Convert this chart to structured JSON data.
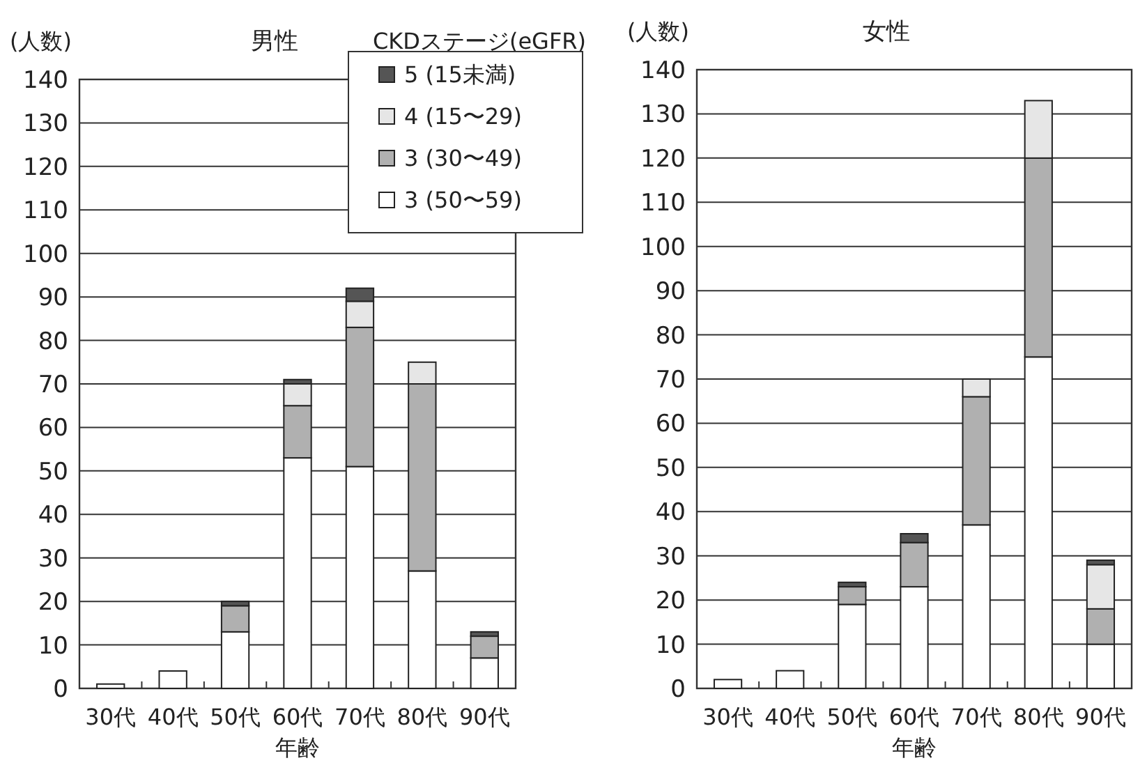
{
  "chart_data": [
    {
      "type": "bar",
      "stacked": true,
      "title": "男性",
      "legend_title": "CKDステージ(eGFR)",
      "xlabel": "年齢",
      "ylabel": "(人数)",
      "categories": [
        "30代",
        "40代",
        "50代",
        "60代",
        "70代",
        "80代",
        "90代"
      ],
      "ylim": [
        0,
        140
      ],
      "yticks": [
        0,
        10,
        20,
        30,
        40,
        50,
        60,
        70,
        80,
        90,
        100,
        110,
        120,
        130,
        140
      ],
      "grid": "y",
      "legend": "top right",
      "series": [
        {
          "name": "3 (50〜59)",
          "color": "#ffffff",
          "values": [
            1,
            4,
            13,
            53,
            51,
            27,
            7
          ]
        },
        {
          "name": "3 (30〜49)",
          "color": "#b0b0b0",
          "values": [
            0,
            0,
            6,
            12,
            32,
            43,
            5
          ]
        },
        {
          "name": "4 (15〜29)",
          "color": "#e6e6e6",
          "values": [
            0,
            0,
            0,
            5,
            6,
            5,
            0
          ]
        },
        {
          "name": "5 (15未満)",
          "color": "#555555",
          "values": [
            0,
            0,
            1,
            1,
            3,
            0,
            1
          ]
        }
      ]
    },
    {
      "type": "bar",
      "stacked": true,
      "title": "女性",
      "xlabel": "年齢",
      "ylabel": "(人数)",
      "categories": [
        "30代",
        "40代",
        "50代",
        "60代",
        "70代",
        "80代",
        "90代"
      ],
      "ylim": [
        0,
        140
      ],
      "yticks": [
        0,
        10,
        20,
        30,
        40,
        50,
        60,
        70,
        80,
        90,
        100,
        110,
        120,
        130,
        140
      ],
      "grid": "y",
      "series": [
        {
          "color": "#ffffff",
          "values": [
            2,
            4,
            19,
            23,
            37,
            75,
            10
          ]
        },
        {
          "color": "#b0b0b0",
          "values": [
            0,
            0,
            4,
            10,
            29,
            45,
            8
          ]
        },
        {
          "color": "#e6e6e6",
          "values": [
            0,
            0,
            0,
            0,
            4,
            13,
            10
          ]
        },
        {
          "color": "#555555",
          "values": [
            0,
            0,
            1,
            2,
            0,
            0,
            1
          ]
        }
      ]
    }
  ]
}
